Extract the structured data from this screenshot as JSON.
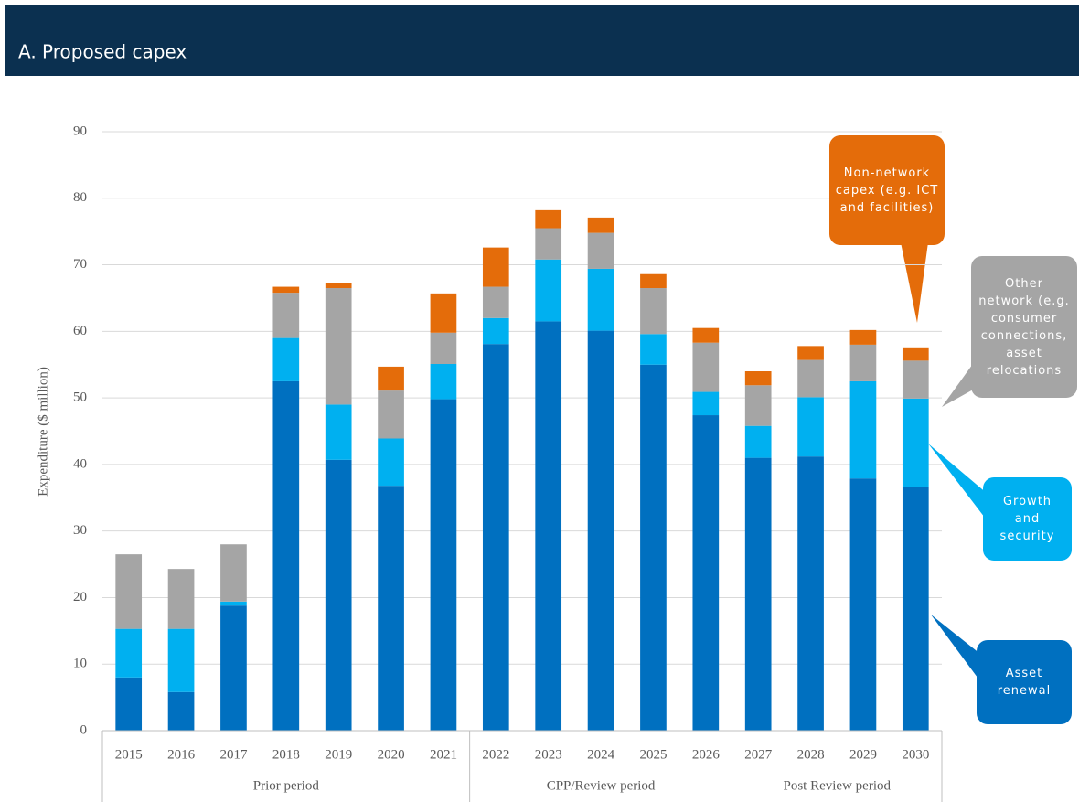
{
  "header": {
    "title": "A. Proposed capex"
  },
  "chart_data": {
    "type": "stacked_bar",
    "y_label": "Expenditure ($ million)",
    "categories": [
      "2015",
      "2016",
      "2017",
      "2018",
      "2019",
      "2020",
      "2021",
      "2022",
      "2023",
      "2024",
      "2025",
      "2026",
      "2027",
      "2028",
      "2029",
      "2030"
    ],
    "period_labels": [
      "Prior period",
      "CPP/Review period",
      "Post Review period"
    ],
    "period_sizes": [
      7,
      5,
      4
    ],
    "series": [
      {
        "name": "Asset renewal",
        "color": "#0070c0",
        "values": [
          8,
          5.8,
          18.8,
          52.5,
          40.7,
          36.8,
          49.8,
          58.1,
          61.5,
          60.1,
          55,
          47.4,
          41,
          41.2,
          37.9,
          36.6
        ]
      },
      {
        "name": "Growth and security",
        "color": "#00b0f0",
        "values": [
          7.3,
          9.5,
          0.6,
          6.5,
          8.3,
          7.1,
          5.3,
          3.9,
          9.3,
          9.3,
          4.6,
          3.5,
          4.8,
          8.9,
          14.6,
          13.3
        ]
      },
      {
        "name": "Other network (e.g. consumer connections, asset relocations",
        "color": "#a5a5a5",
        "values": [
          11.2,
          9,
          8.6,
          6.8,
          17.5,
          7.2,
          4.7,
          4.7,
          4.7,
          5.4,
          6.9,
          7.4,
          6.1,
          5.6,
          5.5,
          5.7
        ]
      },
      {
        "name": "Non-network capex (e.g. ICT and facilities)",
        "color": "#e46c0a",
        "values": [
          0,
          0,
          0,
          0.9,
          0.7,
          3.6,
          5.9,
          5.9,
          2.7,
          2.3,
          2.1,
          2.2,
          2.1,
          2.1,
          2.2,
          2.0
        ]
      }
    ],
    "ylim": [
      0,
      90
    ],
    "yticks": [
      0,
      10,
      20,
      30,
      40,
      50,
      60,
      70,
      80,
      90
    ],
    "grid": true
  }
}
